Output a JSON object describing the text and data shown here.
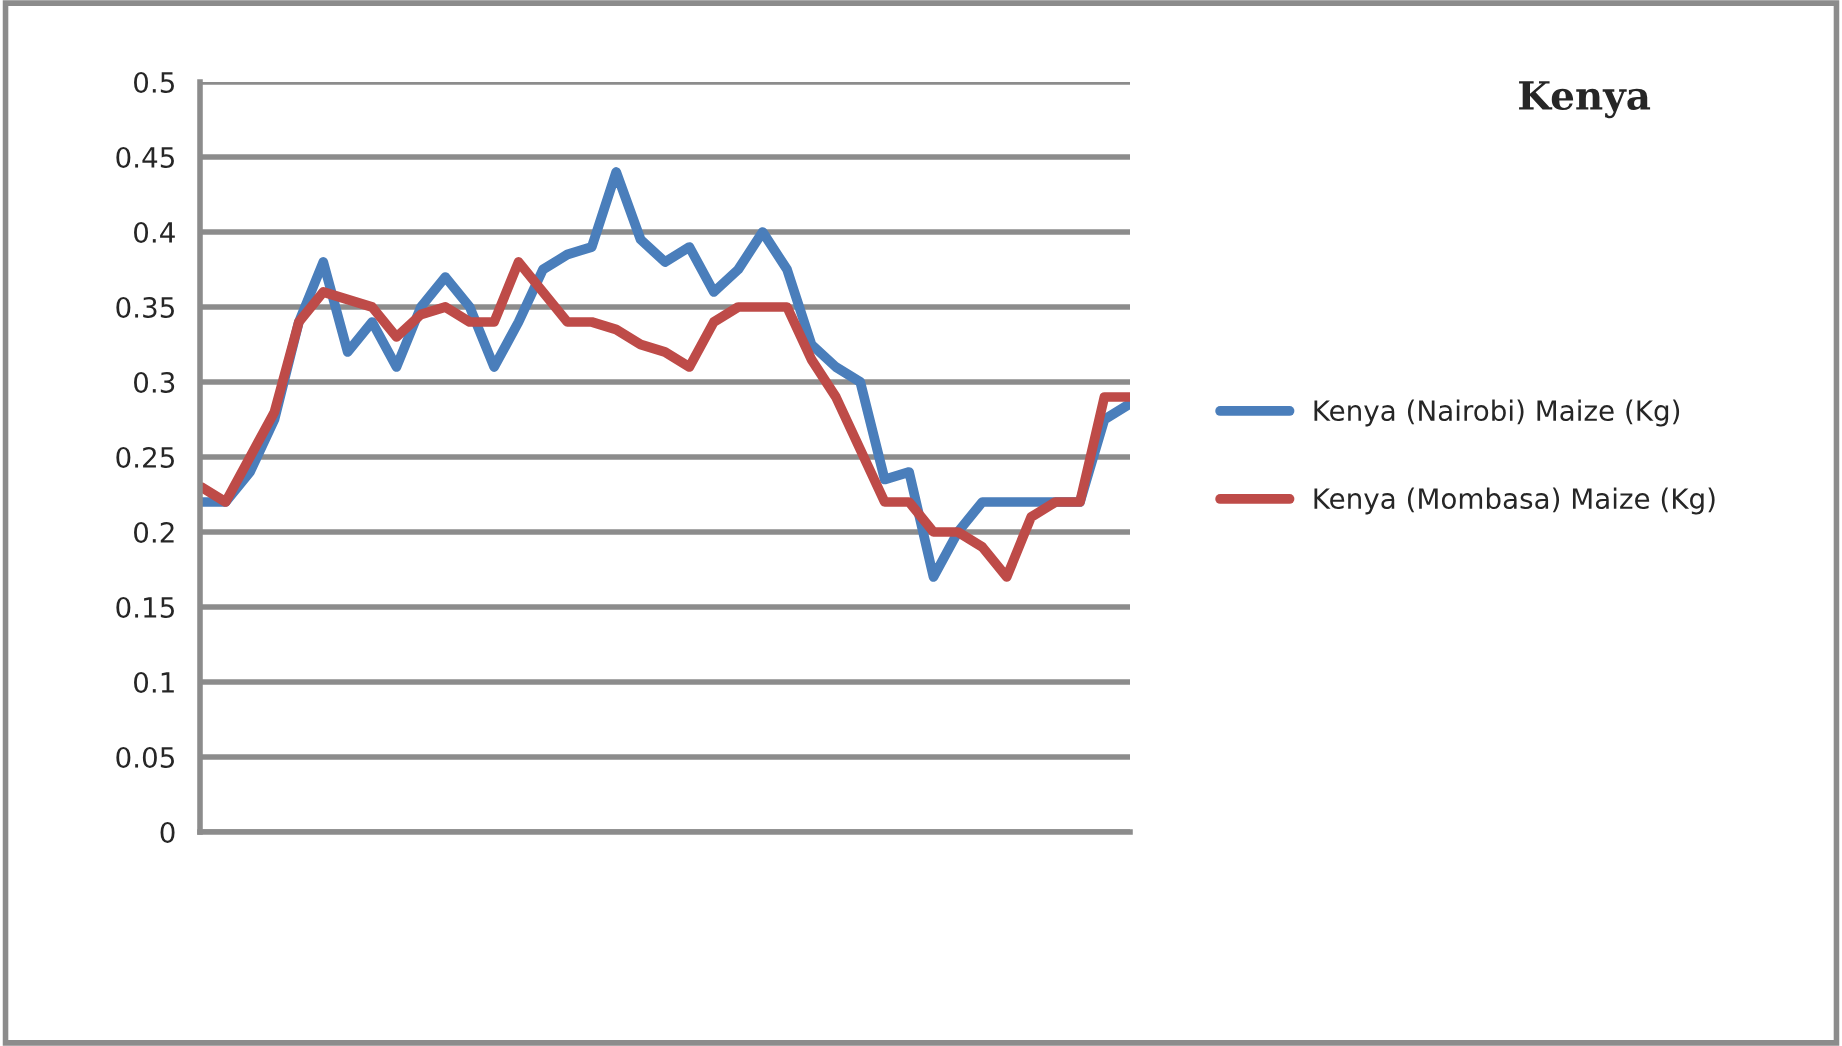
{
  "chart_data": {
    "type": "line",
    "title": "Kenya",
    "categories": [
      null,
      null,
      null,
      null,
      null,
      null,
      null,
      null,
      null,
      null,
      null,
      null,
      null,
      null,
      null,
      null,
      null,
      null,
      null,
      null,
      null,
      null,
      null,
      null,
      null,
      null,
      null,
      null,
      null,
      null,
      null,
      null,
      null,
      null,
      null,
      null,
      null,
      null,
      null
    ],
    "series": [
      {
        "name": "Kenya (Nairobi) Maize (Kg)",
        "color": "#4a7ebb",
        "values": [
          0.22,
          0.22,
          0.24,
          0.275,
          0.34,
          0.38,
          0.32,
          0.34,
          0.31,
          0.35,
          0.37,
          0.35,
          0.31,
          0.34,
          0.375,
          0.385,
          0.39,
          0.44,
          0.395,
          0.38,
          0.39,
          0.36,
          0.375,
          0.4,
          0.375,
          0.325,
          0.31,
          0.3,
          0.235,
          0.24,
          0.17,
          0.2,
          0.22,
          0.22,
          0.22,
          0.22,
          0.22,
          0.275,
          0.285
        ]
      },
      {
        "name": "Kenya (Mombasa) Maize (Kg)",
        "color": "#be4b48",
        "values": [
          0.23,
          0.22,
          0.25,
          0.28,
          0.34,
          0.36,
          0.355,
          0.35,
          0.33,
          0.345,
          0.35,
          0.34,
          0.34,
          0.38,
          0.36,
          0.34,
          0.34,
          0.335,
          0.325,
          0.32,
          0.31,
          0.34,
          0.35,
          0.35,
          0.35,
          0.315,
          0.29,
          0.255,
          0.22,
          0.22,
          0.2,
          0.2,
          0.19,
          0.17,
          0.21,
          0.22,
          0.22,
          0.29,
          0.29
        ]
      }
    ],
    "ylim": [
      0,
      0.5
    ],
    "yticks": [
      0,
      0.05,
      0.1,
      0.15,
      0.2,
      0.25,
      0.3,
      0.35,
      0.4,
      0.45,
      0.5
    ],
    "grid": "y",
    "legend": "right",
    "marker": "none",
    "line_style": "solid"
  }
}
